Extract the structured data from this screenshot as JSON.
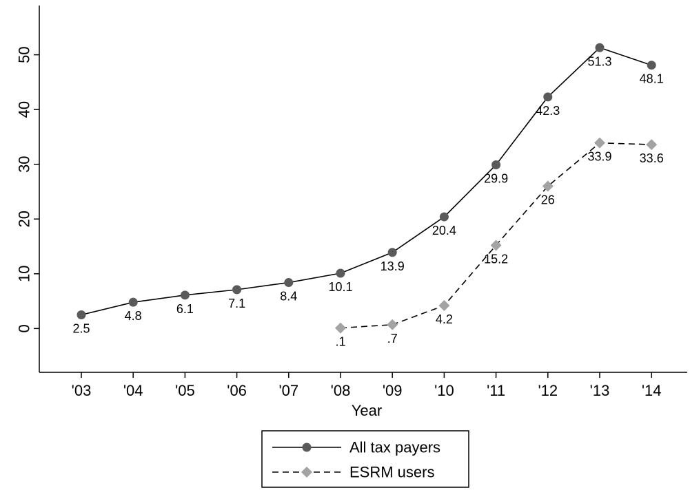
{
  "chart_data": {
    "type": "line",
    "title": "",
    "xlabel": "Year",
    "ylabel": "",
    "categories": [
      "'03",
      "'04",
      "'05",
      "'06",
      "'07",
      "'08",
      "'09",
      "'10",
      "'11",
      "'12",
      "'13",
      "'14"
    ],
    "ylim": [
      -8,
      59
    ],
    "yticks": [
      0,
      10,
      20,
      30,
      40,
      50
    ],
    "grid": false,
    "legend_position": "bottom",
    "series": [
      {
        "name": "All tax payers",
        "marker": "circle",
        "line_style": "solid",
        "color": "#5a5a5a",
        "values": [
          2.5,
          4.8,
          6.1,
          7.1,
          8.4,
          10.1,
          13.9,
          20.4,
          29.9,
          42.3,
          51.3,
          48.1
        ],
        "labels": [
          "2.5",
          "4.8",
          "6.1",
          "7.1",
          "8.4",
          "10.1",
          "13.9",
          "20.4",
          "29.9",
          "42.3",
          "51.3",
          "48.1"
        ]
      },
      {
        "name": "ESRM users",
        "marker": "diamond",
        "line_style": "dashed",
        "color": "#a3a3a3",
        "values": [
          null,
          null,
          null,
          null,
          null,
          0.1,
          0.7,
          4.2,
          15.2,
          26,
          33.9,
          33.6
        ],
        "labels": [
          null,
          null,
          null,
          null,
          null,
          ".1",
          ".7",
          "4.2",
          "15.2",
          "26",
          "33.9",
          "33.6"
        ]
      }
    ]
  }
}
